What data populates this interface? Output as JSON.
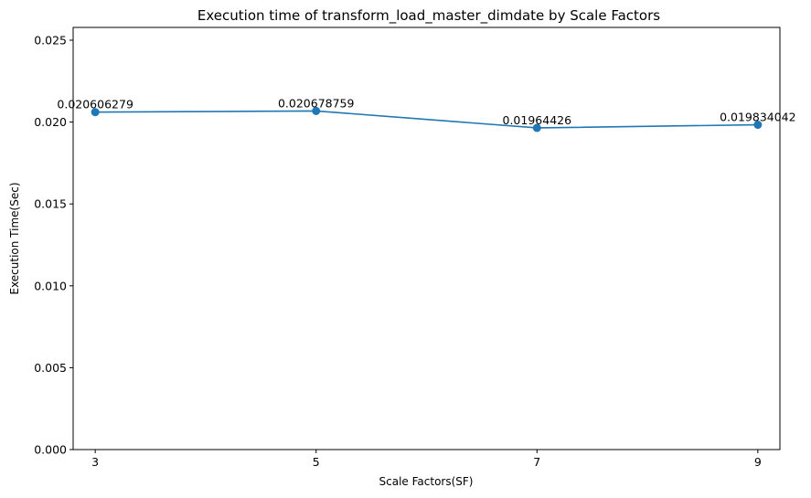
{
  "chart_data": {
    "type": "line",
    "title": "Execution time of transform_load_master_dimdate by Scale Factors",
    "xlabel": "Scale Factors(SF)",
    "ylabel": "Execution Time(Sec)",
    "x": [
      3,
      5,
      7,
      9
    ],
    "xticks": [
      "3",
      "5",
      "7",
      "9"
    ],
    "xlim": [
      2.8,
      9.2
    ],
    "ylim": [
      0,
      0.02578
    ],
    "yticks": [
      0.0,
      0.005,
      0.01,
      0.015,
      0.02,
      0.025
    ],
    "ytick_labels": [
      "0.000",
      "0.005",
      "0.010",
      "0.015",
      "0.020",
      "0.025"
    ],
    "series": [
      {
        "values": [
          0.020606279,
          0.020678759,
          0.01964426,
          0.019834042
        ],
        "data_labels": [
          "0.020606279",
          "0.020678759",
          "0.01964426",
          "0.019834042"
        ],
        "color": "#1f77b4",
        "marker": "circle"
      }
    ],
    "grid": false,
    "legend": "none"
  }
}
